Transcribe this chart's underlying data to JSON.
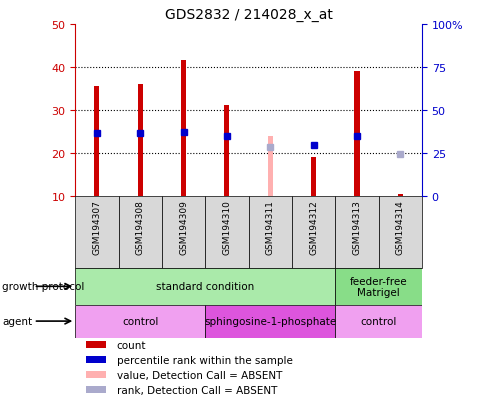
{
  "title": "GDS2832 / 214028_x_at",
  "samples": [
    "GSM194307",
    "GSM194308",
    "GSM194309",
    "GSM194310",
    "GSM194311",
    "GSM194312",
    "GSM194313",
    "GSM194314"
  ],
  "count_values": [
    35.5,
    36.0,
    41.5,
    31.0,
    null,
    19.0,
    39.0,
    10.5
  ],
  "count_absent_values": [
    null,
    null,
    null,
    null,
    24.0,
    null,
    null,
    null
  ],
  "percentile_rank": [
    36.5,
    36.5,
    37.0,
    35.0,
    null,
    29.5,
    35.0,
    null
  ],
  "percentile_rank_absent": [
    null,
    null,
    null,
    null,
    28.5,
    null,
    null,
    24.0
  ],
  "ylim": [
    10,
    50
  ],
  "y2lim": [
    0,
    100
  ],
  "yticks": [
    10,
    20,
    30,
    40,
    50
  ],
  "y2ticks": [
    0,
    25,
    50,
    75,
    100
  ],
  "y2ticklabels": [
    "0",
    "25",
    "50",
    "75",
    "100%"
  ],
  "count_color": "#cc0000",
  "count_absent_color": "#ffb0b0",
  "rank_color": "#0000cc",
  "rank_absent_color": "#aaaacc",
  "bar_bottom": 10,
  "bar_width": 0.12,
  "growth_protocol_groups": [
    {
      "label": "standard condition",
      "start": 0,
      "end": 6,
      "color": "#aaeaaa"
    },
    {
      "label": "feeder-free\nMatrigel",
      "start": 6,
      "end": 8,
      "color": "#88dd88"
    }
  ],
  "agent_groups": [
    {
      "label": "control",
      "start": 0,
      "end": 3,
      "color": "#f0a0f0"
    },
    {
      "label": "sphingosine-1-phosphate",
      "start": 3,
      "end": 6,
      "color": "#dd55dd"
    },
    {
      "label": "control",
      "start": 6,
      "end": 8,
      "color": "#f0a0f0"
    }
  ],
  "legend_items": [
    {
      "label": "count",
      "color": "#cc0000"
    },
    {
      "label": "percentile rank within the sample",
      "color": "#0000cc"
    },
    {
      "label": "value, Detection Call = ABSENT",
      "color": "#ffb0b0"
    },
    {
      "label": "rank, Detection Call = ABSENT",
      "color": "#aaaacc"
    }
  ],
  "growth_label": "growth protocol",
  "agent_label": "agent",
  "sample_bg_color": "#d8d8d8",
  "plot_bg": "#ffffff",
  "tick_label_color_left": "#cc0000",
  "tick_label_color_right": "#0000cc",
  "grid_dotted_at": [
    20,
    30,
    40
  ]
}
